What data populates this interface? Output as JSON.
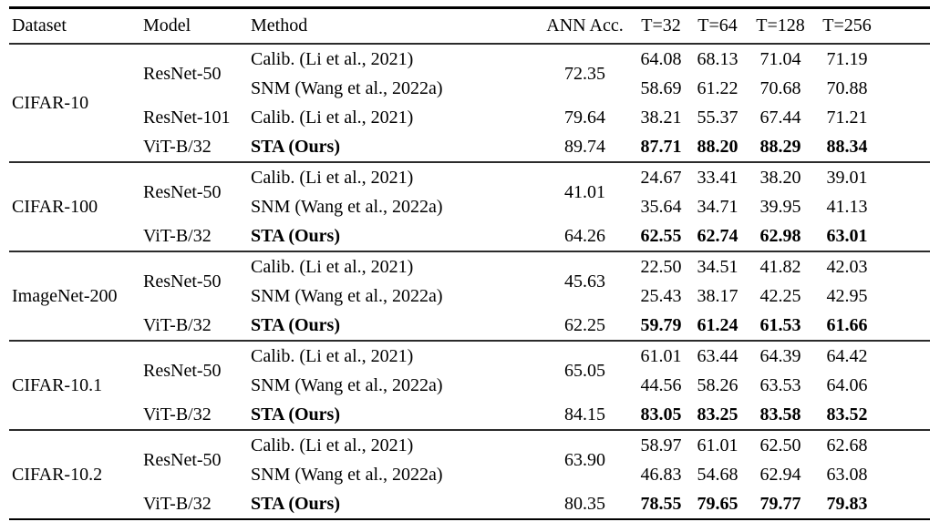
{
  "colors": {
    "background": "#ffffff",
    "text": "#000000",
    "rule": "#000000"
  },
  "table": {
    "columns": [
      "Dataset",
      "Model",
      "Method",
      "ANN Acc.",
      "T=32",
      "T=64",
      "T=128",
      "T=256"
    ],
    "blocks": [
      {
        "dataset": "CIFAR-10",
        "rows": [
          {
            "model": "ResNet-50",
            "model_span": 2,
            "method": "Calib. (Li et al., 2021)",
            "ann": "72.35",
            "ann_span": 2,
            "values": [
              "64.08",
              "68.13",
              "71.04",
              "71.19"
            ],
            "bold": false
          },
          {
            "method": "SNM (Wang et al., 2022a)",
            "values": [
              "58.69",
              "61.22",
              "70.68",
              "70.88"
            ],
            "bold": false
          },
          {
            "model": "ResNet-101",
            "model_span": 1,
            "method": "Calib. (Li et al., 2021)",
            "ann": "79.64",
            "ann_span": 1,
            "values": [
              "38.21",
              "55.37",
              "67.44",
              "71.21"
            ],
            "bold": false
          },
          {
            "model": "ViT-B/32",
            "model_span": 1,
            "method": "STA (Ours)",
            "ann": "89.74",
            "ann_span": 1,
            "values": [
              "87.71",
              "88.20",
              "88.29",
              "88.34"
            ],
            "bold": true
          }
        ]
      },
      {
        "dataset": "CIFAR-100",
        "rows": [
          {
            "model": "ResNet-50",
            "model_span": 2,
            "method": "Calib. (Li et al., 2021)",
            "ann": "41.01",
            "ann_span": 2,
            "values": [
              "24.67",
              "33.41",
              "38.20",
              "39.01"
            ],
            "bold": false
          },
          {
            "method": "SNM (Wang et al., 2022a)",
            "values": [
              "35.64",
              "34.71",
              "39.95",
              "41.13"
            ],
            "bold": false
          },
          {
            "model": "ViT-B/32",
            "model_span": 1,
            "method": "STA (Ours)",
            "ann": "64.26",
            "ann_span": 1,
            "values": [
              "62.55",
              "62.74",
              "62.98",
              "63.01"
            ],
            "bold": true
          }
        ]
      },
      {
        "dataset": "ImageNet-200",
        "rows": [
          {
            "model": "ResNet-50",
            "model_span": 2,
            "method": "Calib. (Li et al., 2021)",
            "ann": "45.63",
            "ann_span": 2,
            "values": [
              "22.50",
              "34.51",
              "41.82",
              "42.03"
            ],
            "bold": false
          },
          {
            "method": "SNM (Wang et al., 2022a)",
            "values": [
              "25.43",
              "38.17",
              "42.25",
              "42.95"
            ],
            "bold": false
          },
          {
            "model": "ViT-B/32",
            "model_span": 1,
            "method": "STA (Ours)",
            "ann": "62.25",
            "ann_span": 1,
            "values": [
              "59.79",
              "61.24",
              "61.53",
              "61.66"
            ],
            "bold": true
          }
        ]
      },
      {
        "dataset": "CIFAR-10.1",
        "rows": [
          {
            "model": "ResNet-50",
            "model_span": 2,
            "method": "Calib. (Li et al., 2021)",
            "ann": "65.05",
            "ann_span": 2,
            "values": [
              "61.01",
              "63.44",
              "64.39",
              "64.42"
            ],
            "bold": false
          },
          {
            "method": "SNM (Wang et al., 2022a)",
            "values": [
              "44.56",
              "58.26",
              "63.53",
              "64.06"
            ],
            "bold": false
          },
          {
            "model": "ViT-B/32",
            "model_span": 1,
            "method": "STA (Ours)",
            "ann": "84.15",
            "ann_span": 1,
            "values": [
              "83.05",
              "83.25",
              "83.58",
              "83.52"
            ],
            "bold": true
          }
        ]
      },
      {
        "dataset": "CIFAR-10.2",
        "rows": [
          {
            "model": "ResNet-50",
            "model_span": 2,
            "method": "Calib. (Li et al., 2021)",
            "ann": "63.90",
            "ann_span": 2,
            "values": [
              "58.97",
              "61.01",
              "62.50",
              "62.68"
            ],
            "bold": false
          },
          {
            "method": "SNM (Wang et al., 2022a)",
            "values": [
              "46.83",
              "54.68",
              "62.94",
              "63.08"
            ],
            "bold": false
          },
          {
            "model": "ViT-B/32",
            "model_span": 1,
            "method": "STA (Ours)",
            "ann": "80.35",
            "ann_span": 1,
            "values": [
              "78.55",
              "79.65",
              "79.77",
              "79.83"
            ],
            "bold": true
          }
        ]
      }
    ]
  }
}
